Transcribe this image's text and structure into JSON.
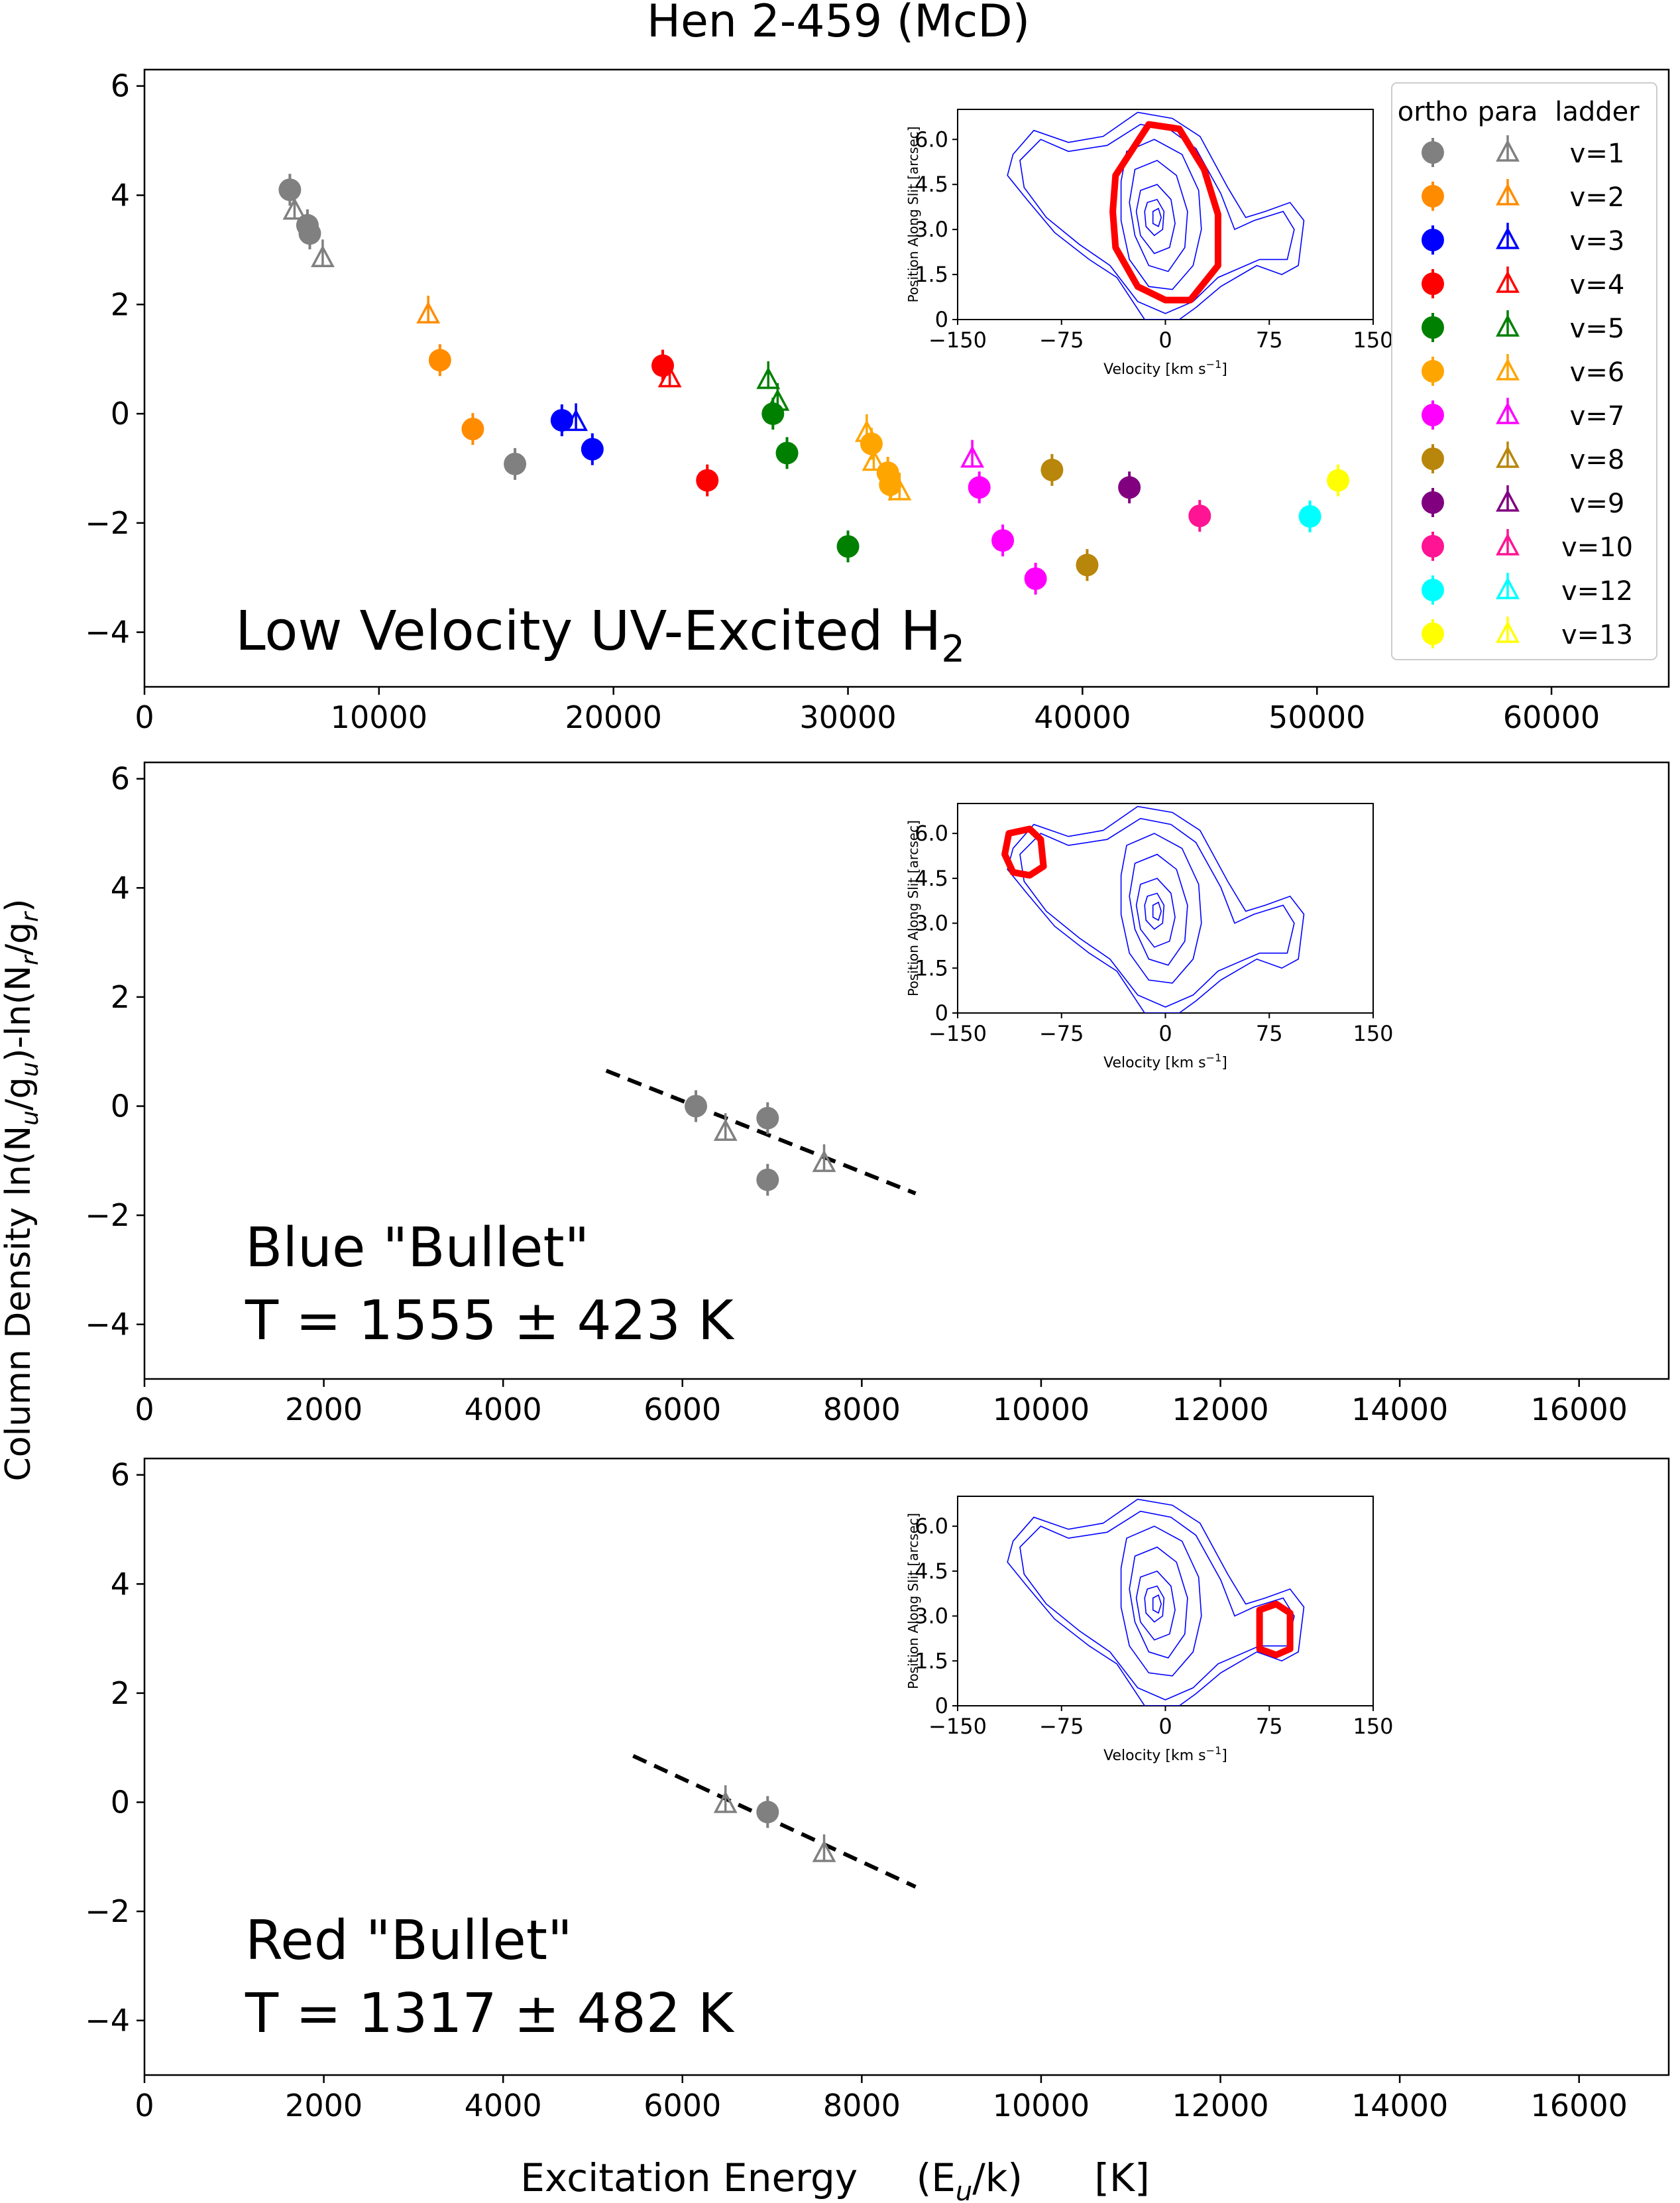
{
  "figure_title": "Hen 2-459 (McD)",
  "ylabel_density": "Column Density",
  "ylabel_formula": {
    "p1": "ln(N",
    "s1": "u",
    "p2": "/g",
    "s2": "u",
    "p3": ")-ln(N",
    "s3": "r",
    "p4": "/g",
    "s4": "r",
    "p5": ")"
  },
  "xlabel": {
    "lead": "Excitation Energy",
    "formula_open": "(E",
    "formula_sub": "u",
    "formula_close": "/k)",
    "unit": "[K]"
  },
  "legend": {
    "headers": [
      "ortho",
      "para",
      "ladder"
    ],
    "colors": {
      "grey": "#808080",
      "dark_orange": "#ff8c00",
      "blue": "#0000ff",
      "red": "#ff0000",
      "green": "#008000",
      "orange": "#ffa500",
      "magenta": "#ff00ff",
      "dark_goldenrod": "#b8860b",
      "purple": "#800080",
      "deep_pink": "#ff1493",
      "cyan": "#00ffff",
      "yellow": "#ffff00"
    },
    "ladders": [
      {
        "label": "v=1",
        "color": "grey"
      },
      {
        "label": "v=2",
        "color": "dark_orange"
      },
      {
        "label": "v=3",
        "color": "blue"
      },
      {
        "label": "v=4",
        "color": "red"
      },
      {
        "label": "v=5",
        "color": "green"
      },
      {
        "label": "v=6",
        "color": "orange"
      },
      {
        "label": "v=7",
        "color": "magenta"
      },
      {
        "label": "v=8",
        "color": "dark_goldenrod"
      },
      {
        "label": "v=9",
        "color": "purple"
      },
      {
        "label": "v=10",
        "color": "deep_pink"
      },
      {
        "label": "v=12",
        "color": "cyan"
      },
      {
        "label": "v=13",
        "color": "yellow"
      }
    ]
  },
  "chart_data": [
    {
      "type": "scatter",
      "panel": "low-velocity",
      "annotation": {
        "text": "Low Velocity UV-Excited H",
        "sub": "2"
      },
      "xlim": [
        0,
        65000
      ],
      "ylim": [
        -5,
        6.3
      ],
      "xticks": [
        0,
        10000,
        20000,
        30000,
        40000,
        50000,
        60000
      ],
      "yticks": [
        -4,
        -2,
        0,
        2,
        4,
        6
      ],
      "grid": false,
      "legend_placement": "top-right",
      "ortho": [
        {
          "x": 6200,
          "y": 4.1,
          "c": "grey"
        },
        {
          "x": 6950,
          "y": 3.45,
          "c": "grey"
        },
        {
          "x": 7050,
          "y": 3.3,
          "c": "grey"
        },
        {
          "x": 15800,
          "y": -0.92,
          "c": "grey"
        },
        {
          "x": 12600,
          "y": 0.98,
          "c": "dark_orange"
        },
        {
          "x": 14000,
          "y": -0.28,
          "c": "dark_orange"
        },
        {
          "x": 17800,
          "y": -0.12,
          "c": "blue"
        },
        {
          "x": 19100,
          "y": -0.65,
          "c": "blue"
        },
        {
          "x": 22100,
          "y": 0.88,
          "c": "red"
        },
        {
          "x": 24000,
          "y": -1.22,
          "c": "red"
        },
        {
          "x": 26800,
          "y": 0.0,
          "c": "green"
        },
        {
          "x": 27400,
          "y": -0.72,
          "c": "green"
        },
        {
          "x": 30000,
          "y": -2.43,
          "c": "green"
        },
        {
          "x": 31000,
          "y": -0.55,
          "c": "orange"
        },
        {
          "x": 31700,
          "y": -1.08,
          "c": "orange"
        },
        {
          "x": 31800,
          "y": -1.3,
          "c": "orange"
        },
        {
          "x": 35600,
          "y": -1.35,
          "c": "magenta"
        },
        {
          "x": 36600,
          "y": -2.32,
          "c": "magenta"
        },
        {
          "x": 38000,
          "y": -3.02,
          "c": "magenta"
        },
        {
          "x": 38700,
          "y": -1.03,
          "c": "dark_goldenrod"
        },
        {
          "x": 40200,
          "y": -2.77,
          "c": "dark_goldenrod"
        },
        {
          "x": 42000,
          "y": -1.35,
          "c": "purple"
        },
        {
          "x": 45000,
          "y": -1.87,
          "c": "deep_pink"
        },
        {
          "x": 49700,
          "y": -1.88,
          "c": "cyan"
        },
        {
          "x": 50900,
          "y": -1.22,
          "c": "yellow"
        }
      ],
      "para": [
        {
          "x": 6400,
          "y": 3.72,
          "c": "grey"
        },
        {
          "x": 7600,
          "y": 2.85,
          "c": "grey"
        },
        {
          "x": 12100,
          "y": 1.82,
          "c": "dark_orange"
        },
        {
          "x": 18400,
          "y": -0.15,
          "c": "blue"
        },
        {
          "x": 22400,
          "y": 0.65,
          "c": "red"
        },
        {
          "x": 26600,
          "y": 0.62,
          "c": "green"
        },
        {
          "x": 27000,
          "y": 0.22,
          "c": "green"
        },
        {
          "x": 30800,
          "y": -0.35,
          "c": "orange"
        },
        {
          "x": 31100,
          "y": -0.88,
          "c": "orange"
        },
        {
          "x": 32200,
          "y": -1.42,
          "c": "orange"
        },
        {
          "x": 35300,
          "y": -0.82,
          "c": "magenta"
        }
      ],
      "inset": {
        "xlabel": "Velocity [km s",
        "xlabel_sup": "−1",
        "xlabel_close": "]",
        "ylabel": "Position Along Slit [arcsec]",
        "xticks": [
          "-150",
          "-75",
          "0",
          "75",
          "150"
        ],
        "yticks": [
          "0",
          "1.5",
          "3.0",
          "4.5",
          "6.0"
        ],
        "xlim": [
          -150,
          150
        ],
        "ylim": [
          0,
          7.0
        ],
        "region_color": "#ff0000",
        "contour_color": "#0000ff",
        "region": [
          [
            -12,
            6.5
          ],
          [
            10,
            6.35
          ],
          [
            28,
            5.0
          ],
          [
            38,
            3.5
          ],
          [
            38,
            1.8
          ],
          [
            18,
            0.65
          ],
          [
            0,
            0.65
          ],
          [
            -20,
            1.1
          ],
          [
            -36,
            2.4
          ],
          [
            -38,
            3.6
          ],
          [
            -36,
            4.8
          ]
        ]
      }
    },
    {
      "type": "scatter",
      "panel": "blue-bullet",
      "annotation_line1": "Blue \"Bullet\"",
      "annotation_line2": "T = 1555 ± 423 K",
      "xlim": [
        0,
        17000
      ],
      "ylim": [
        -5,
        6.3
      ],
      "xticks": [
        0,
        2000,
        4000,
        6000,
        8000,
        10000,
        12000,
        14000,
        16000
      ],
      "yticks": [
        -4,
        -2,
        0,
        2,
        4,
        6
      ],
      "grid": false,
      "ortho": [
        {
          "x": 6150,
          "y": 0.0,
          "c": "grey"
        },
        {
          "x": 6950,
          "y": -0.22,
          "c": "grey"
        },
        {
          "x": 6950,
          "y": -1.35,
          "c": "grey"
        }
      ],
      "para": [
        {
          "x": 6480,
          "y": -0.47,
          "c": "grey"
        },
        {
          "x": 7580,
          "y": -1.04,
          "c": "grey"
        }
      ],
      "fit_line": [
        [
          5150,
          0.65
        ],
        [
          8600,
          -1.6
        ]
      ],
      "inset": {
        "xlabel": "Velocity [km s",
        "xlabel_sup": "−1",
        "xlabel_close": "]",
        "ylabel": "Position Along Slit [arcsec]",
        "xticks": [
          "-150",
          "-75",
          "0",
          "75",
          "150"
        ],
        "yticks": [
          "0",
          "1.5",
          "3.0",
          "4.5",
          "6.0"
        ],
        "xlim": [
          -150,
          150
        ],
        "ylim": [
          0,
          7.0
        ],
        "region_color": "#ff0000",
        "contour_color": "#0000ff",
        "region": [
          [
            -113,
            6.0
          ],
          [
            -98,
            6.15
          ],
          [
            -90,
            5.8
          ],
          [
            -88,
            4.9
          ],
          [
            -98,
            4.6
          ],
          [
            -110,
            4.7
          ],
          [
            -116,
            5.3
          ]
        ]
      }
    },
    {
      "type": "scatter",
      "panel": "red-bullet",
      "annotation_line1": "Red \"Bullet\"",
      "annotation_line2": "T = 1317 ± 482 K",
      "xlim": [
        0,
        17000
      ],
      "ylim": [
        -5,
        6.3
      ],
      "xticks": [
        0,
        2000,
        4000,
        6000,
        8000,
        10000,
        12000,
        14000,
        16000
      ],
      "yticks": [
        -4,
        -2,
        0,
        2,
        4,
        6
      ],
      "grid": false,
      "ortho": [
        {
          "x": 6950,
          "y": -0.18,
          "c": "grey"
        }
      ],
      "para": [
        {
          "x": 6480,
          "y": -0.03,
          "c": "grey"
        },
        {
          "x": 7580,
          "y": -0.93,
          "c": "grey"
        }
      ],
      "fit_line": [
        [
          5450,
          0.85
        ],
        [
          8600,
          -1.55
        ]
      ],
      "inset": {
        "xlabel": "Velocity [km s",
        "xlabel_sup": "−1",
        "xlabel_close": "]",
        "ylabel": "Position Along Slit [arcsec]",
        "xticks": [
          "-150",
          "-75",
          "0",
          "75",
          "150"
        ],
        "yticks": [
          "0",
          "1.5",
          "3.0",
          "4.5",
          "6.0"
        ],
        "xlim": [
          -150,
          150
        ],
        "ylim": [
          0,
          7.0
        ],
        "region_color": "#ff0000",
        "contour_color": "#0000ff",
        "region": [
          [
            68,
            3.2
          ],
          [
            80,
            3.4
          ],
          [
            90,
            3.1
          ],
          [
            90,
            1.9
          ],
          [
            80,
            1.7
          ],
          [
            68,
            1.9
          ]
        ]
      }
    }
  ]
}
